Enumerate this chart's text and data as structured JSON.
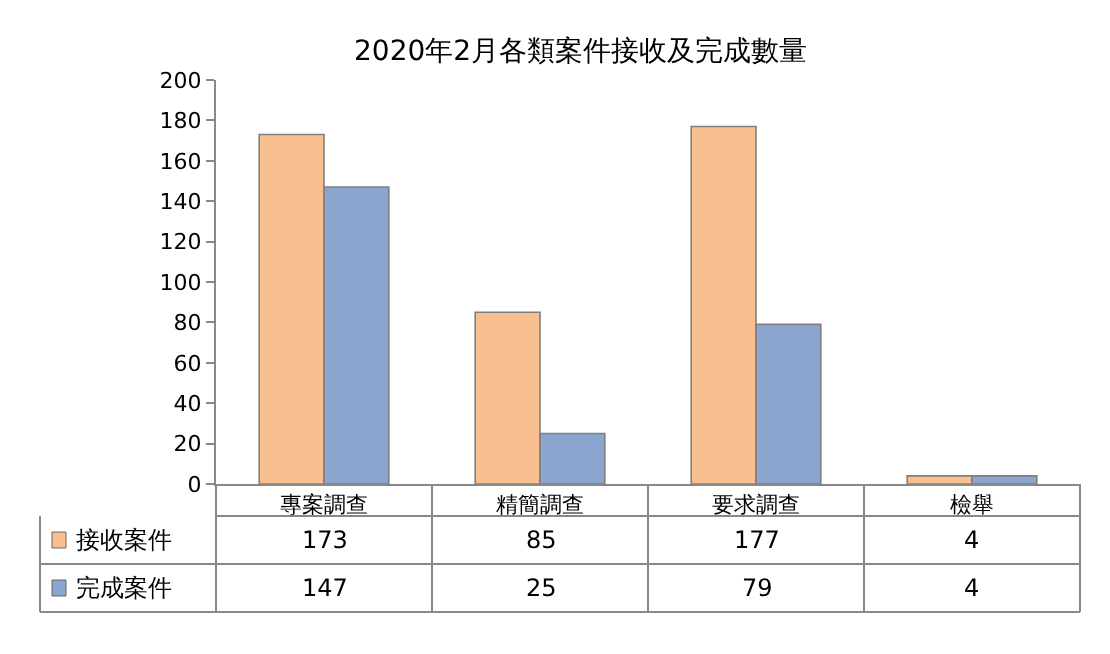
{
  "chart_data": {
    "type": "bar",
    "title": "2020年2月各類案件接收及完成數量",
    "categories": [
      "專案調查",
      "精簡調查",
      "要求調查",
      "檢舉"
    ],
    "series": [
      {
        "name": "接收案件",
        "color": "#f9bf8f",
        "values": [
          173,
          85,
          177,
          4
        ]
      },
      {
        "name": "完成案件",
        "color": "#8aa6cf",
        "values": [
          147,
          25,
          79,
          4
        ]
      }
    ],
    "ylim": [
      0,
      200
    ],
    "yticks": [
      0,
      20,
      40,
      60,
      80,
      100,
      120,
      140,
      160,
      180,
      200
    ],
    "legend": "bottom left",
    "data_labels": true
  }
}
